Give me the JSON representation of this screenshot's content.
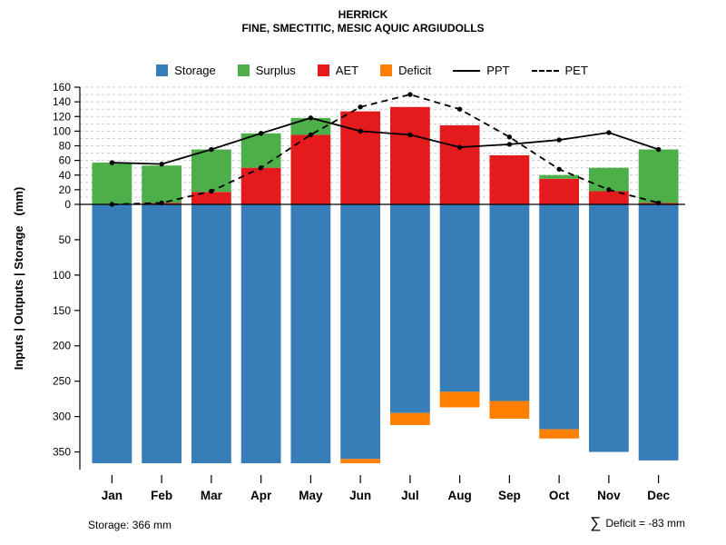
{
  "page": {
    "title": "HERRICK",
    "subtitle": "FINE, SMECTITIC, MESIC AQUIC ARGIUDOLLS"
  },
  "chart_data": {
    "type": "bar",
    "title": "HERRICK",
    "subtitle": "FINE, SMECTITIC, MESIC AQUIC ARGIUDOLLS",
    "ylabel": "Inputs | Outputs | Storage   (mm)",
    "xlabel": "",
    "legend_position": "top",
    "grid": true,
    "categories": [
      "Jan",
      "Feb",
      "Mar",
      "Apr",
      "May",
      "Jun",
      "Jul",
      "Aug",
      "Sep",
      "Oct",
      "Nov",
      "Dec"
    ],
    "upper_axis": {
      "min": 0,
      "max": 160,
      "ticks": [
        0,
        20,
        40,
        60,
        80,
        100,
        120,
        140,
        160
      ],
      "grid_step": 10
    },
    "lower_axis": {
      "min": 0,
      "max_extent": 375,
      "ticks": [
        50,
        100,
        150,
        200,
        250,
        300,
        350
      ]
    },
    "bar_series": [
      {
        "name": "AET",
        "direction": "up",
        "color": "#e41a1c",
        "values": [
          0,
          2,
          17,
          50,
          95,
          127,
          133,
          108,
          67,
          35,
          18,
          2
        ]
      },
      {
        "name": "Surplus",
        "direction": "up",
        "color": "#4daf4a",
        "values": [
          57,
          51,
          58,
          47,
          23,
          0,
          0,
          0,
          0,
          5,
          32,
          73
        ]
      },
      {
        "name": "Storage",
        "direction": "down",
        "color": "#377eb8",
        "values": [
          366,
          366,
          366,
          366,
          366,
          360,
          295,
          265,
          278,
          318,
          350,
          362
        ]
      },
      {
        "name": "Deficit",
        "direction": "down",
        "color": "#ff7f00",
        "values": [
          0,
          0,
          0,
          0,
          0,
          6,
          17,
          22,
          25,
          13,
          0,
          0
        ]
      }
    ],
    "line_series": [
      {
        "name": "PPT",
        "dash": "solid",
        "color": "#000000",
        "values": [
          57,
          55,
          75,
          97,
          118,
          100,
          95,
          78,
          82,
          88,
          98,
          75
        ]
      },
      {
        "name": "PET",
        "dash": "dashed",
        "color": "#000000",
        "values": [
          0,
          2,
          18,
          50,
          95,
          133,
          150,
          130,
          92,
          48,
          20,
          2
        ]
      }
    ],
    "legend": [
      {
        "label": "Storage",
        "swatch": "square",
        "color": "#377eb8"
      },
      {
        "label": "Surplus",
        "swatch": "square",
        "color": "#4daf4a"
      },
      {
        "label": "AET",
        "swatch": "square",
        "color": "#e41a1c"
      },
      {
        "label": "Deficit",
        "swatch": "square",
        "color": "#ff7f00"
      },
      {
        "label": "PPT",
        "swatch": "line-solid",
        "color": "#000000"
      },
      {
        "label": "PET",
        "swatch": "line-dashed",
        "color": "#000000"
      }
    ]
  },
  "footer": {
    "storage_note": "Storage: 366 mm",
    "sigma": "∑",
    "deficit_note": "Deficit = -83 mm"
  }
}
